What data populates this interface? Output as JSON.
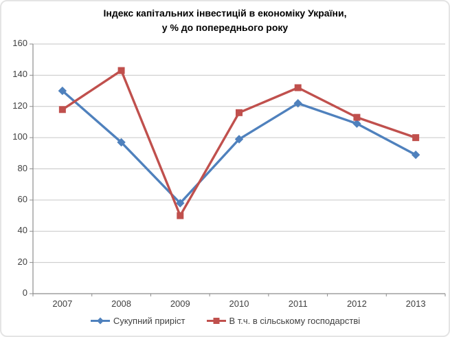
{
  "title": {
    "line1": "Індекс капітальних інвестицій в економіку України,",
    "line2": "у % до попереднього року"
  },
  "chart_data": {
    "type": "line",
    "categories": [
      "2007",
      "2008",
      "2009",
      "2010",
      "2011",
      "2012",
      "2013"
    ],
    "series": [
      {
        "name": "Сукупний приріст",
        "values": [
          130,
          97,
          58,
          99,
          122,
          109,
          89
        ],
        "color": "#4F81BD",
        "marker": "diamond"
      },
      {
        "name": "В т.ч. в сільському господарстві",
        "values": [
          118,
          143,
          50,
          116,
          132,
          113,
          100
        ],
        "color": "#C0504D",
        "marker": "square"
      }
    ],
    "ylim": [
      0,
      160
    ],
    "ytick_step": 20,
    "grid": true,
    "legend_position": "bottom",
    "gridline_color": "#C6C6C6",
    "axis_color": "#8C8C8C"
  }
}
